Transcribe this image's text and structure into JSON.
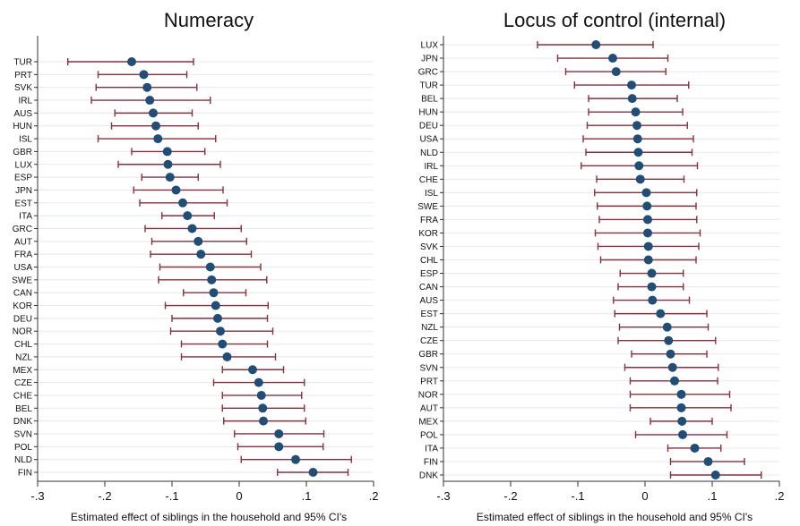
{
  "colors": {
    "point": "#1f4e79",
    "ci": "#8b2e3c",
    "grid": "#e3eaf0",
    "axis": "#333333"
  },
  "chart_data": [
    {
      "type": "scatter",
      "title": "Numeracy",
      "xlabel": "Estimated effect of siblings in the household and 95% CI's",
      "xlim": [
        -0.3,
        0.2
      ],
      "xticks": [
        "-.3",
        "-.2",
        "-.1",
        "0",
        ".1",
        ".2"
      ],
      "grid": true,
      "categories": [
        "TUR",
        "PRT",
        "SVK",
        "IRL",
        "AUS",
        "HUN",
        "ISL",
        "GBR",
        "LUX",
        "ESP",
        "JPN",
        "EST",
        "ITA",
        "GRC",
        "AUT",
        "FRA",
        "USA",
        "SWE",
        "CAN",
        "KOR",
        "DEU",
        "NOR",
        "CHL",
        "NZL",
        "MEX",
        "CZE",
        "CHE",
        "BEL",
        "DNK",
        "SVN",
        "POL",
        "NLD",
        "FIN"
      ],
      "values": [
        -0.16,
        -0.142,
        -0.137,
        -0.133,
        -0.128,
        -0.124,
        -0.121,
        -0.107,
        -0.106,
        -0.103,
        -0.094,
        -0.084,
        -0.077,
        -0.07,
        -0.061,
        -0.057,
        -0.043,
        -0.041,
        -0.038,
        -0.035,
        -0.032,
        -0.028,
        -0.025,
        -0.018,
        0.02,
        0.029,
        0.033,
        0.035,
        0.036,
        0.059,
        0.059,
        0.084,
        0.11
      ],
      "ci_low": [
        -0.255,
        -0.21,
        -0.213,
        -0.22,
        -0.185,
        -0.19,
        -0.21,
        -0.16,
        -0.18,
        -0.145,
        -0.157,
        -0.148,
        -0.115,
        -0.14,
        -0.13,
        -0.132,
        -0.118,
        -0.12,
        -0.083,
        -0.11,
        -0.1,
        -0.102,
        -0.086,
        -0.086,
        -0.025,
        -0.038,
        -0.025,
        -0.025,
        -0.023,
        -0.007,
        -0.002,
        0.003,
        0.057
      ],
      "ci_high": [
        -0.068,
        -0.078,
        -0.063,
        -0.043,
        -0.07,
        -0.061,
        -0.035,
        -0.051,
        -0.028,
        -0.061,
        -0.024,
        -0.018,
        -0.037,
        0.003,
        0.011,
        0.018,
        0.032,
        0.041,
        0.01,
        0.043,
        0.042,
        0.05,
        0.042,
        0.054,
        0.066,
        0.097,
        0.093,
        0.097,
        0.099,
        0.126,
        0.125,
        0.167,
        0.162
      ]
    },
    {
      "type": "scatter",
      "title": "Locus of control (internal)",
      "xlabel": "Estimated effect of siblings in the household and 95% CI's",
      "xlim": [
        -0.3,
        0.2
      ],
      "xticks": [
        "-.3",
        "-.2",
        "-.1",
        "0",
        ".1",
        ".2"
      ],
      "grid": true,
      "categories": [
        "LUX",
        "JPN",
        "GRC",
        "TUR",
        "BEL",
        "HUN",
        "DEU",
        "USA",
        "NLD",
        "IRL",
        "CHE",
        "ISL",
        "SWE",
        "FRA",
        "KOR",
        "SVK",
        "CHL",
        "ESP",
        "CAN",
        "AUS",
        "EST",
        "NZL",
        "CZE",
        "GBR",
        "SVN",
        "PRT",
        "NOR",
        "AUT",
        "MEX",
        "POL",
        "ITA",
        "FIN",
        "DNK"
      ],
      "values": [
        -0.073,
        -0.048,
        -0.043,
        -0.02,
        -0.019,
        -0.014,
        -0.012,
        -0.011,
        -0.01,
        -0.009,
        -0.007,
        0.002,
        0.003,
        0.004,
        0.004,
        0.005,
        0.005,
        0.01,
        0.01,
        0.011,
        0.023,
        0.033,
        0.035,
        0.038,
        0.041,
        0.044,
        0.054,
        0.054,
        0.055,
        0.056,
        0.074,
        0.094,
        0.105
      ],
      "ci_low": [
        -0.16,
        -0.13,
        -0.118,
        -0.105,
        -0.084,
        -0.084,
        -0.086,
        -0.092,
        -0.088,
        -0.095,
        -0.072,
        -0.075,
        -0.071,
        -0.068,
        -0.074,
        -0.07,
        -0.066,
        -0.037,
        -0.04,
        -0.047,
        -0.045,
        -0.038,
        -0.04,
        -0.02,
        -0.03,
        -0.022,
        -0.022,
        -0.022,
        0.008,
        -0.014,
        0.034,
        0.038,
        0.038
      ],
      "ci_high": [
        0.012,
        0.034,
        0.031,
        0.065,
        0.048,
        0.056,
        0.063,
        0.072,
        0.07,
        0.078,
        0.058,
        0.077,
        0.076,
        0.077,
        0.082,
        0.08,
        0.076,
        0.057,
        0.057,
        0.066,
        0.092,
        0.094,
        0.105,
        0.092,
        0.109,
        0.108,
        0.126,
        0.128,
        0.1,
        0.122,
        0.113,
        0.148,
        0.173
      ]
    }
  ]
}
